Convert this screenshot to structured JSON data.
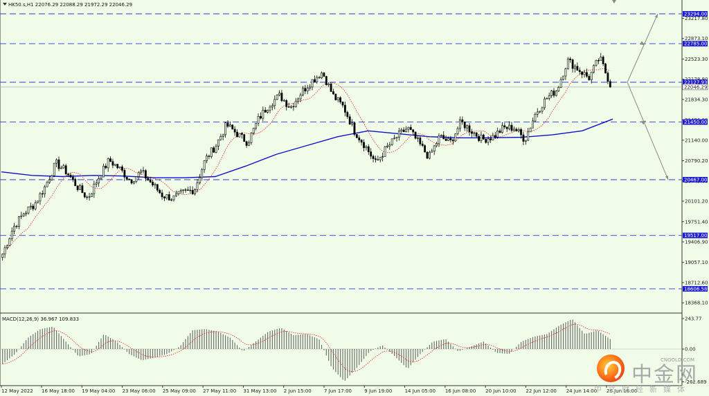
{
  "chart_title": "HK50.s,H1  22076.29 22088.29 21972.29 22046.29",
  "macd_title": "MACD(12,26,9) 36.967 109.833",
  "watermark": {
    "zh": "中金网",
    "en": "CNGOLD.COM",
    "sub": "中文财经新媒体",
    "logo": "cngold-logo-icon"
  },
  "chart_data": {
    "type": "candlestick",
    "symbol": "HK50.s",
    "timeframe": "H1",
    "ohlc_current": {
      "open": 22076.29,
      "high": 22088.29,
      "low": 21972.29,
      "close": 22046.29
    },
    "ylim": [
      18000,
      23450
    ],
    "y_ticks": [
      "23217.80",
      "22873.10",
      "22523.30",
      "22178.80",
      "21834.30",
      "21486.00",
      "21140.00",
      "20790.20",
      "20445.00",
      "20101.20",
      "19751.40",
      "19406.90",
      "19057.10",
      "18712.60",
      "18368.10"
    ],
    "price_levels": [
      {
        "label": "23294.00",
        "value": 23294.0
      },
      {
        "label": "22785.00",
        "value": 22785.0
      },
      {
        "label": "22127.93",
        "value": 22127.93
      },
      {
        "label": "22046.29",
        "value": 22046.29
      },
      {
        "label": "21450.00",
        "value": 21450.0
      },
      {
        "label": "20467.00",
        "value": 20467.0
      },
      {
        "label": "19517.00",
        "value": 19517.0
      },
      {
        "label": "18606.58",
        "value": 18606.58
      }
    ],
    "x_labels": [
      "12 May 2022",
      "16 May 18:00",
      "19 May 04:00",
      "23 May 06:00",
      "25 May 09:00",
      "27 May 11:00",
      "31 May 13:00",
      "2 Jun 15:00",
      "7 Jun 17:00",
      "9 Jun 19:00",
      "14 Jun 05:00",
      "16 Jun 08:00",
      "20 Jun 10:00",
      "22 Jun 12:00",
      "24 Jun 14:00",
      "28 Jun 16:00"
    ],
    "close_path": [
      19200,
      19650,
      19900,
      20050,
      20350,
      20750,
      20600,
      20350,
      20150,
      20500,
      20800,
      20650,
      20450,
      20600,
      20400,
      20200,
      20150,
      20250,
      20300,
      20800,
      21050,
      21400,
      21250,
      21100,
      21500,
      21750,
      21900,
      21700,
      21950,
      22150,
      22300,
      21900,
      21700,
      21300,
      21050,
      20750,
      21000,
      21200,
      21350,
      21100,
      20850,
      21200,
      21100,
      21450,
      21300,
      21150,
      21200,
      21350,
      21350,
      21150,
      21600,
      21850,
      22000,
      22500,
      22350,
      22200,
      22550,
      22100
    ],
    "ma_slow": [
      20600,
      20540,
      20520,
      20540,
      20530,
      20500,
      20500,
      20520,
      20700,
      20900,
      21050,
      21200,
      21300,
      21250,
      21200,
      21180,
      21180,
      21190,
      21230,
      21300,
      21500
    ],
    "macd": {
      "label": "MACD(12,26,9)",
      "values": [
        36.967,
        109.833
      ],
      "y_ticks": [
        "243.77",
        "0.00",
        "-262.689"
      ],
      "hist_path": [
        -120,
        -40,
        90,
        160,
        180,
        60,
        -60,
        -40,
        120,
        60,
        -40,
        -90,
        -70,
        -40,
        20,
        150,
        160,
        140,
        90,
        -20,
        60,
        140,
        170,
        110,
        120,
        80,
        -150,
        -260,
        -150,
        -20,
        30,
        -60,
        -160,
        -40,
        60,
        80,
        -20,
        20,
        60,
        -30,
        -40,
        60,
        100,
        120,
        190,
        240,
        120,
        150,
        80
      ]
    }
  }
}
